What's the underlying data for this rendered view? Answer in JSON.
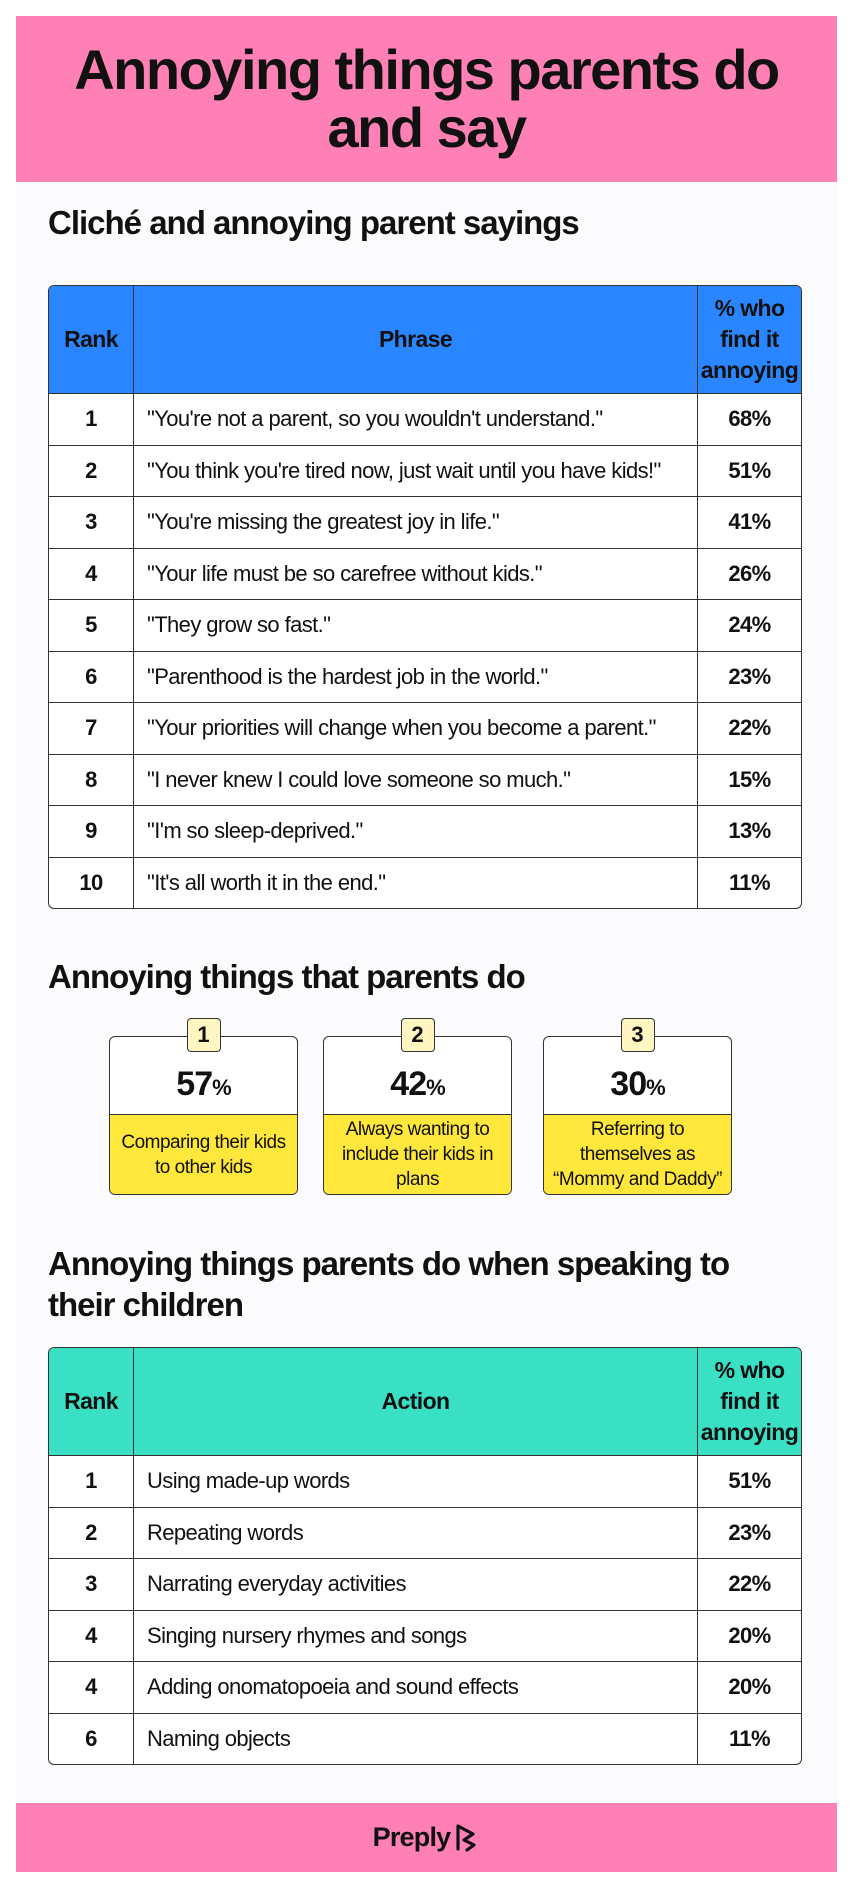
{
  "header": {
    "title": "Annoying things parents do and say"
  },
  "sayings": {
    "title": "Cliché and annoying parent sayings",
    "headers": {
      "rank": "Rank",
      "phrase": "Phrase",
      "pct": "% who find it annoying"
    },
    "rows": [
      {
        "rank": "1",
        "phrase": "\"You're not a parent, so you wouldn't understand.\"",
        "pct": "68%"
      },
      {
        "rank": "2",
        "phrase": "\"You think you're tired now, just wait until you have kids!\"",
        "pct": "51%"
      },
      {
        "rank": "3",
        "phrase": "\"You're missing the greatest joy in life.\"",
        "pct": "41%"
      },
      {
        "rank": "4",
        "phrase": "\"Your life must be so carefree without kids.\"",
        "pct": "26%"
      },
      {
        "rank": "5",
        "phrase": "\"They grow so fast.\"",
        "pct": "24%"
      },
      {
        "rank": "6",
        "phrase": "\"Parenthood is the hardest job in the world.\"",
        "pct": "23%"
      },
      {
        "rank": "7",
        "phrase": "\"Your priorities will change when you become a parent.\"",
        "pct": "22%"
      },
      {
        "rank": "8",
        "phrase": "\"I never knew I could love someone so much.\"",
        "pct": "15%"
      },
      {
        "rank": "9",
        "phrase": "\"I'm so sleep-deprived.\"",
        "pct": "13%"
      },
      {
        "rank": "10",
        "phrase": "\"It's all worth it in the end.\"",
        "pct": "11%"
      }
    ]
  },
  "things_do": {
    "title": "Annoying things that parents do",
    "cards": [
      {
        "rank": "1",
        "value": "57",
        "unit": "%",
        "label": "Comparing their kids to other kids"
      },
      {
        "rank": "2",
        "value": "42",
        "unit": "%",
        "label": "Always wanting to include their kids in plans"
      },
      {
        "rank": "3",
        "value": "30",
        "unit": "%",
        "label": "Referring to themselves as “Mommy and Daddy”"
      }
    ]
  },
  "speaking": {
    "title": "Annoying things parents do when speaking to their children",
    "headers": {
      "rank": "Rank",
      "action": "Action",
      "pct": "% who find it annoying"
    },
    "rows": [
      {
        "rank": "1",
        "action": "Using made-up words",
        "pct": "51%"
      },
      {
        "rank": "2",
        "action": "Repeating words",
        "pct": "23%"
      },
      {
        "rank": "3",
        "action": "Narrating everyday activities",
        "pct": "22%"
      },
      {
        "rank": "4",
        "action": "Singing nursery rhymes and songs",
        "pct": "20%"
      },
      {
        "rank": "4",
        "action": "Adding onomatopoeia and sound effects",
        "pct": "20%"
      },
      {
        "rank": "6",
        "action": "Naming objects",
        "pct": "11%"
      }
    ]
  },
  "footer": {
    "brand": "Preply",
    "logo_icon": "preply-logo-icon"
  },
  "colors": {
    "pink": "#ff80b5",
    "blue_header": "#2a86ff",
    "teal_header": "#3ae0c4",
    "yellow": "#ffe73b",
    "badge": "#fff6c2"
  }
}
